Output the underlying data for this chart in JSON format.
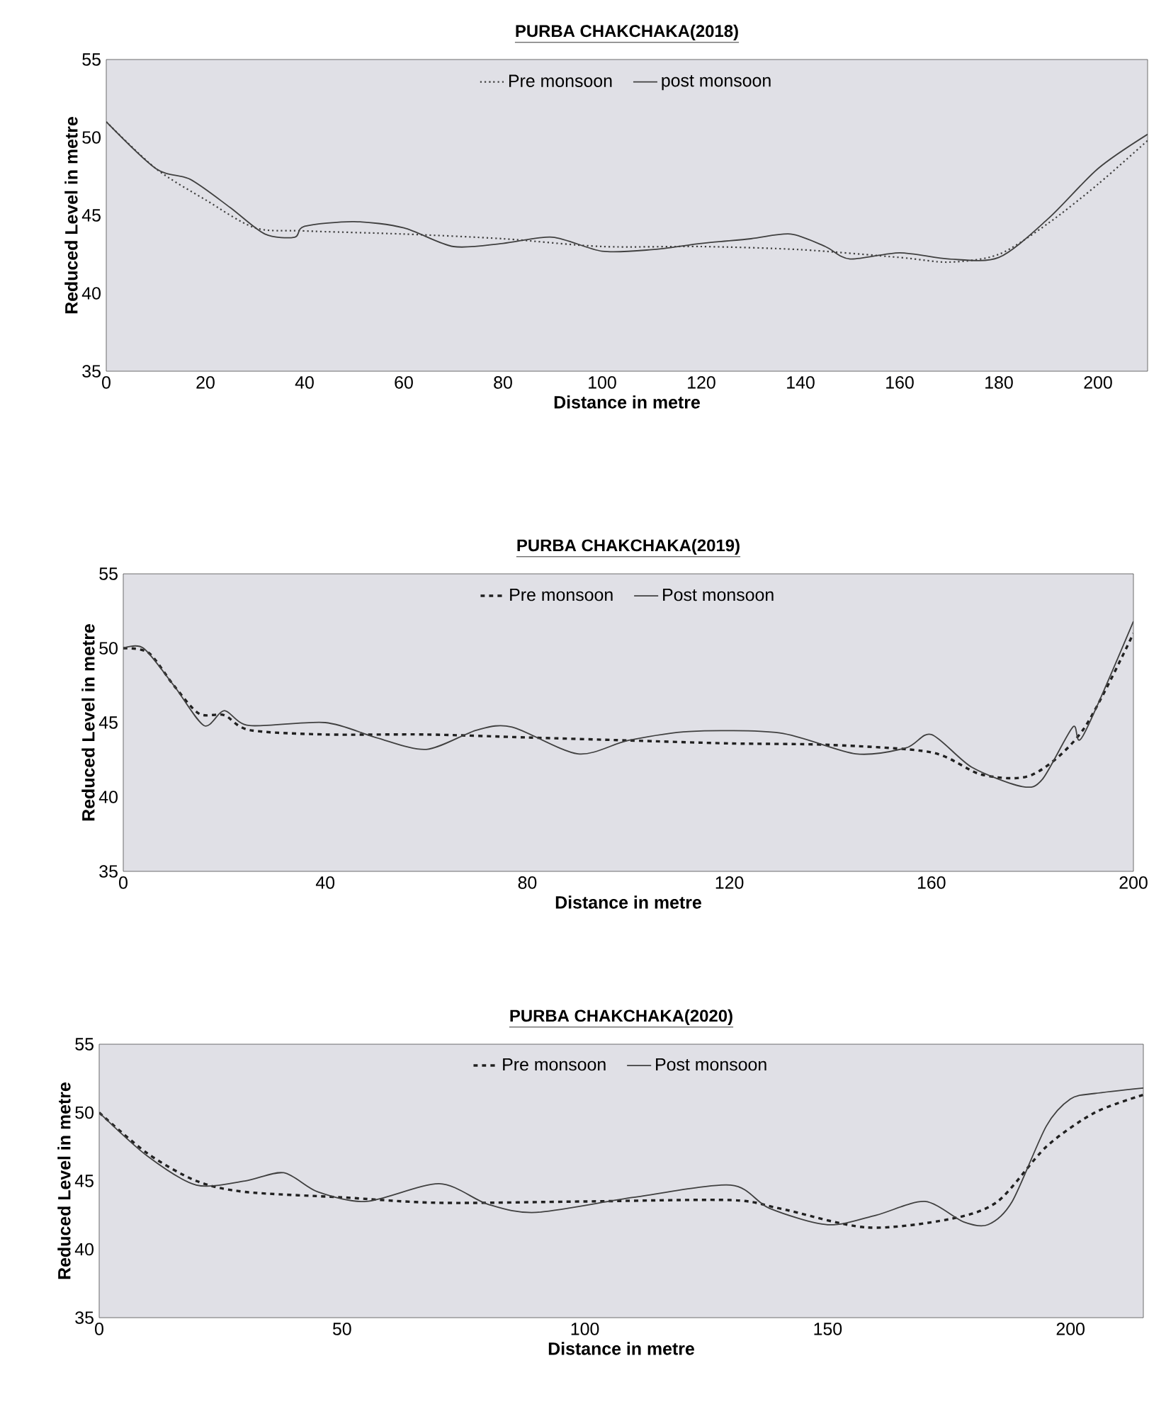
{
  "chart_data": [
    {
      "type": "line",
      "title": "PURBA CHAKCHAKA(2018)",
      "xlabel": "Distance in metre",
      "ylabel": "Reduced Level in metre",
      "xlim": [
        0,
        210
      ],
      "xticks": [
        0,
        20,
        40,
        60,
        80,
        100,
        120,
        140,
        160,
        180,
        200
      ],
      "ylim": [
        35,
        55
      ],
      "yticks": [
        35,
        40,
        45,
        50,
        55
      ],
      "legend": "top",
      "marker": "none",
      "series": [
        {
          "name": "Pre monsoon",
          "color": "#404040",
          "line_style": "dotted",
          "x": [
            0,
            10,
            20,
            30,
            40,
            60,
            80,
            100,
            120,
            140,
            160,
            170,
            180,
            190,
            200,
            210
          ],
          "values": [
            51,
            48,
            46,
            44.2,
            44,
            43.8,
            43.5,
            43,
            43,
            42.8,
            42.3,
            42,
            42.5,
            44.5,
            47,
            49.8
          ]
        },
        {
          "name": "post monsoon",
          "color": "#404040",
          "line_style": "solid",
          "x": [
            0,
            10,
            17,
            25,
            32,
            38,
            40,
            50,
            60,
            70,
            80,
            90,
            100,
            110,
            120,
            130,
            138,
            145,
            150,
            160,
            170,
            180,
            190,
            200,
            210
          ],
          "values": [
            51,
            48,
            47.3,
            45.5,
            43.8,
            43.6,
            44.3,
            44.6,
            44.2,
            43,
            43.2,
            43.6,
            42.7,
            42.8,
            43.2,
            43.5,
            43.8,
            43,
            42.2,
            42.6,
            42.2,
            42.3,
            44.8,
            48,
            50.2
          ]
        }
      ]
    },
    {
      "type": "line",
      "title": "PURBA CHAKCHAKA(2019)",
      "xlabel": "Distance in metre",
      "ylabel": "Reduced Level in metre",
      "xlim": [
        0,
        200
      ],
      "xticks": [
        0,
        40,
        80,
        120,
        160,
        200
      ],
      "ylim": [
        35,
        55
      ],
      "yticks": [
        35,
        40,
        45,
        50,
        55
      ],
      "legend": "top",
      "marker": "none",
      "series": [
        {
          "name": "Pre monsoon",
          "color": "#202020",
          "line_style": "dashed",
          "x": [
            0,
            5,
            10,
            15,
            20,
            25,
            40,
            60,
            80,
            100,
            120,
            140,
            160,
            170,
            180,
            190,
            200
          ],
          "values": [
            50,
            49.7,
            47.5,
            45.6,
            45.5,
            44.5,
            44.2,
            44.2,
            44,
            43.8,
            43.6,
            43.5,
            43,
            41.5,
            41.5,
            44.5,
            51
          ]
        },
        {
          "name": "Post monsoon",
          "color": "#404040",
          "line_style": "solid",
          "x": [
            0,
            4,
            10,
            16,
            20,
            25,
            40,
            50,
            60,
            70,
            77,
            90,
            100,
            112,
            130,
            145,
            155,
            160,
            168,
            178,
            182,
            188,
            190,
            200
          ],
          "values": [
            50,
            50,
            47.5,
            44.8,
            45.8,
            44.8,
            45,
            44,
            43.2,
            44.5,
            44.7,
            42.9,
            43.8,
            44.4,
            44.3,
            42.9,
            43.3,
            44.2,
            42,
            40.7,
            41.2,
            44.7,
            44.1,
            51.8
          ]
        }
      ]
    },
    {
      "type": "line",
      "title": "PURBA CHAKCHAKA(2020)",
      "xlabel": "Distance in metre",
      "ylabel": "Reduced Level in metre",
      "xlim": [
        0,
        215
      ],
      "xticks": [
        0,
        50,
        100,
        150,
        200
      ],
      "ylim": [
        35,
        55
      ],
      "yticks": [
        35,
        40,
        45,
        50,
        55
      ],
      "legend": "top",
      "marker": "none",
      "series": [
        {
          "name": "Pre monsoon",
          "color": "#202020",
          "line_style": "dashed",
          "x": [
            0,
            10,
            20,
            30,
            50,
            70,
            100,
            130,
            140,
            158,
            175,
            185,
            195,
            205,
            215
          ],
          "values": [
            50,
            47,
            45,
            44.2,
            43.8,
            43.4,
            43.5,
            43.6,
            43,
            41.6,
            42.2,
            43.5,
            47.5,
            50,
            51.3
          ]
        },
        {
          "name": "Post monsoon",
          "color": "#404040",
          "line_style": "solid",
          "x": [
            0,
            10,
            20,
            30,
            38,
            45,
            55,
            70,
            80,
            90,
            110,
            130,
            138,
            150,
            160,
            170,
            178,
            183,
            188,
            195,
            200,
            205,
            215
          ],
          "values": [
            50,
            46.8,
            44.7,
            45,
            45.6,
            44.2,
            43.5,
            44.8,
            43.3,
            42.7,
            43.8,
            44.7,
            43,
            41.8,
            42.5,
            43.5,
            42,
            41.8,
            43.5,
            49,
            51,
            51.4,
            51.8
          ]
        }
      ]
    }
  ]
}
